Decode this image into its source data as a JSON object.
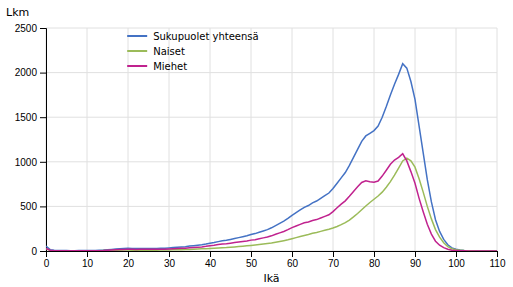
{
  "chart_data": {
    "type": "line",
    "xlabel": "Ikä",
    "ylabel": "Lkm",
    "xlim": [
      0,
      110
    ],
    "ylim": [
      0,
      2500
    ],
    "xticks": [
      0,
      10,
      20,
      30,
      40,
      50,
      60,
      70,
      80,
      90,
      100,
      110
    ],
    "yticks": [
      0,
      500,
      1000,
      1500,
      2000,
      2500
    ],
    "grid": true,
    "legend": "upper left",
    "x": [
      0,
      1,
      2,
      3,
      4,
      5,
      6,
      7,
      8,
      9,
      10,
      11,
      12,
      13,
      14,
      15,
      16,
      17,
      18,
      19,
      20,
      21,
      22,
      23,
      24,
      25,
      26,
      27,
      28,
      29,
      30,
      31,
      32,
      33,
      34,
      35,
      36,
      37,
      38,
      39,
      40,
      41,
      42,
      43,
      44,
      45,
      46,
      47,
      48,
      49,
      50,
      51,
      52,
      53,
      54,
      55,
      56,
      57,
      58,
      59,
      60,
      61,
      62,
      63,
      64,
      65,
      66,
      67,
      68,
      69,
      70,
      71,
      72,
      73,
      74,
      75,
      76,
      77,
      78,
      79,
      80,
      81,
      82,
      83,
      84,
      85,
      86,
      87,
      88,
      89,
      90,
      91,
      92,
      93,
      94,
      95,
      96,
      97,
      98,
      99,
      100,
      101,
      102,
      103,
      104,
      105,
      106,
      107,
      108,
      109,
      110
    ],
    "series": [
      {
        "name": "Sukupuolet yhteensä",
        "color": "#4472C4",
        "values": [
          55,
          15,
          8,
          6,
          5,
          5,
          4,
          4,
          5,
          5,
          5,
          5,
          6,
          8,
          10,
          14,
          18,
          22,
          25,
          28,
          30,
          28,
          27,
          28,
          29,
          28,
          27,
          28,
          30,
          32,
          35,
          38,
          42,
          45,
          48,
          55,
          60,
          65,
          70,
          78,
          88,
          95,
          105,
          115,
          120,
          130,
          140,
          150,
          160,
          170,
          185,
          195,
          210,
          225,
          240,
          260,
          285,
          310,
          335,
          365,
          400,
          430,
          460,
          490,
          510,
          540,
          560,
          590,
          620,
          650,
          700,
          760,
          820,
          880,
          960,
          1050,
          1140,
          1230,
          1290,
          1320,
          1350,
          1400,
          1500,
          1620,
          1750,
          1870,
          1980,
          2100,
          2050,
          1900,
          1700,
          1400,
          1100,
          800,
          550,
          350,
          220,
          130,
          70,
          35,
          20,
          12,
          7,
          4,
          3,
          2,
          1,
          1,
          0,
          0,
          0
        ]
      },
      {
        "name": "Naiset",
        "color": "#9BBB59",
        "values": [
          25,
          7,
          4,
          3,
          3,
          3,
          2,
          2,
          3,
          3,
          3,
          3,
          3,
          4,
          5,
          6,
          7,
          8,
          9,
          10,
          10,
          9,
          9,
          9,
          9,
          9,
          8,
          9,
          10,
          11,
          12,
          13,
          14,
          15,
          16,
          18,
          20,
          22,
          24,
          26,
          28,
          30,
          33,
          36,
          38,
          42,
          46,
          50,
          54,
          58,
          63,
          68,
          73,
          78,
          84,
          90,
          98,
          107,
          116,
          126,
          138,
          150,
          162,
          174,
          185,
          198,
          208,
          220,
          232,
          244,
          258,
          275,
          295,
          318,
          347,
          382,
          420,
          462,
          504,
          544,
          580,
          616,
          660,
          715,
          778,
          850,
          930,
          1010,
          1040,
          1010,
          940,
          810,
          660,
          500,
          360,
          240,
          155,
          92,
          50,
          26,
          14,
          9,
          5,
          3,
          2,
          1,
          1,
          0,
          0,
          0,
          0
        ]
      },
      {
        "name": "Miehet",
        "color": "#C0228E",
        "values": [
          30,
          8,
          4,
          3,
          2,
          2,
          2,
          2,
          2,
          2,
          2,
          2,
          3,
          4,
          5,
          8,
          11,
          14,
          16,
          18,
          20,
          19,
          18,
          19,
          20,
          19,
          19,
          19,
          20,
          21,
          23,
          25,
          28,
          30,
          32,
          37,
          40,
          43,
          46,
          52,
          60,
          65,
          72,
          79,
          82,
          88,
          94,
          100,
          106,
          112,
          122,
          127,
          137,
          147,
          156,
          170,
          187,
          203,
          219,
          239,
          262,
          280,
          298,
          316,
          325,
          342,
          352,
          370,
          388,
          406,
          442,
          485,
          525,
          562,
          613,
          668,
          720,
          768,
          786,
          776,
          770,
          784,
          840,
          905,
          972,
          1020,
          1050,
          1090,
          1010,
          890,
          760,
          590,
          440,
          300,
          190,
          110,
          65,
          38,
          20,
          9,
          6,
          3,
          2,
          1,
          1,
          1,
          0,
          0,
          0,
          0,
          0
        ]
      }
    ]
  }
}
